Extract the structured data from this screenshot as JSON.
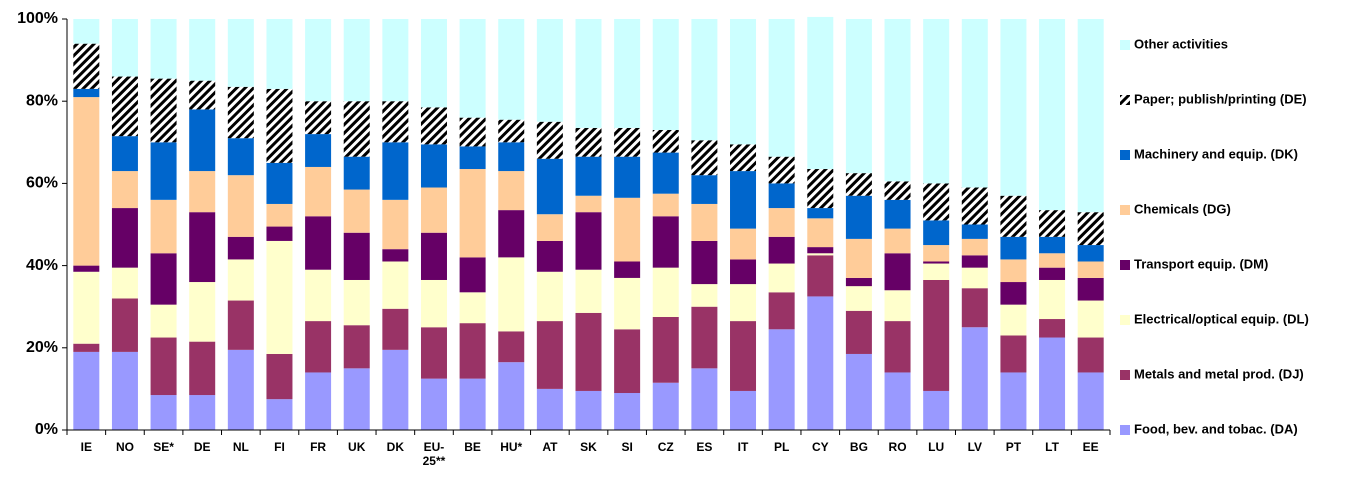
{
  "chart_data": {
    "type": "stacked_bar",
    "categories": [
      "IE",
      "NO",
      "SE*",
      "DE",
      "NL",
      "FI",
      "FR",
      "UK",
      "DK",
      "EU-25**",
      "BE",
      "HU*",
      "AT",
      "SK",
      "SI",
      "CZ",
      "ES",
      "IT",
      "PL",
      "CY",
      "BG",
      "RO",
      "LU",
      "LV",
      "PT",
      "LT",
      "EE"
    ],
    "ylim": [
      0,
      100
    ],
    "yticks": [
      {
        "value": 0,
        "label": "0%"
      },
      {
        "value": 20,
        "label": "20%"
      },
      {
        "value": 40,
        "label": "40%"
      },
      {
        "value": 60,
        "label": "60%"
      },
      {
        "value": 80,
        "label": "80%"
      },
      {
        "value": 100,
        "label": "100%"
      }
    ],
    "grid": false,
    "legend": "right",
    "series": [
      {
        "name": "Food, bev. and tobac. (DA)",
        "color": "#9999ff",
        "values": [
          19,
          19,
          8.5,
          8.5,
          19.5,
          7.5,
          14,
          15,
          19.5,
          12.5,
          12.5,
          16.5,
          10,
          9.5,
          9,
          11.5,
          15,
          9.5,
          24.5,
          32.5,
          18.5,
          14,
          9.5,
          25,
          14,
          22.5,
          14
        ]
      },
      {
        "name": "Metals and metal prod. (DJ)",
        "color": "#993366",
        "values": [
          2,
          13,
          14,
          13,
          12,
          11,
          12.5,
          10.5,
          10,
          12.5,
          13.5,
          7.5,
          16.5,
          19,
          15.5,
          16,
          15,
          17,
          9,
          10,
          10.5,
          12.5,
          27,
          9.5,
          9,
          4.5,
          8.5
        ]
      },
      {
        "name": "Electrical/optical equip. (DL)",
        "color": "#ffffcc",
        "values": [
          17.5,
          7.5,
          8,
          14.5,
          10,
          27.5,
          12.5,
          11,
          11.5,
          11.5,
          7.5,
          18,
          12,
          10.5,
          12.5,
          12,
          5.5,
          9,
          7,
          0.5,
          6,
          7.5,
          4,
          5,
          7.5,
          9.5,
          9
        ]
      },
      {
        "name": "Transport equip. (DM)",
        "color": "#660066",
        "values": [
          1.5,
          14.5,
          12.5,
          17,
          5.5,
          3.5,
          13,
          11.5,
          3,
          11.5,
          8.5,
          11.5,
          7.5,
          14,
          4,
          12.5,
          10.5,
          6,
          6.5,
          1.5,
          2,
          9,
          0.5,
          3,
          5.5,
          3,
          5.5
        ]
      },
      {
        "name": "Chemicals (DG)",
        "color": "#ffcc99",
        "values": [
          41,
          9,
          13,
          10,
          15,
          5.5,
          12,
          10.5,
          12,
          11,
          21.5,
          9.5,
          6.5,
          4,
          15.5,
          5.5,
          9,
          7.5,
          7,
          7,
          9.5,
          6,
          4,
          4,
          5.5,
          3.5,
          4
        ]
      },
      {
        "name": "Machinery and equip. (DK)",
        "color": "#0066cc",
        "values": [
          2,
          8.5,
          14,
          15,
          9,
          10,
          8,
          8,
          14,
          10.5,
          5.5,
          7,
          13.5,
          9.5,
          10,
          10,
          7,
          14,
          6,
          2.5,
          10.5,
          7,
          6,
          3.5,
          5.5,
          4,
          4
        ]
      },
      {
        "name": "Paper; publish/printing (DE)",
        "color": "#000000",
        "pattern": "diagonal",
        "values": [
          11,
          14.5,
          15.5,
          7,
          12.5,
          18,
          8,
          13.5,
          10,
          9,
          7,
          5.5,
          9,
          7,
          7,
          5.5,
          8.5,
          6.5,
          6.5,
          9.5,
          5.5,
          4.5,
          9,
          9,
          10,
          6.5,
          8
        ]
      },
      {
        "name": "Other activities",
        "color": "#ccffff",
        "values": [
          6,
          14,
          14.5,
          15,
          16.5,
          17,
          20,
          20,
          20,
          21.5,
          24,
          24.5,
          25,
          26.5,
          26.5,
          27,
          29.5,
          30.5,
          33.5,
          37,
          37.5,
          39.5,
          40,
          41,
          43,
          46.5,
          47
        ]
      }
    ]
  }
}
